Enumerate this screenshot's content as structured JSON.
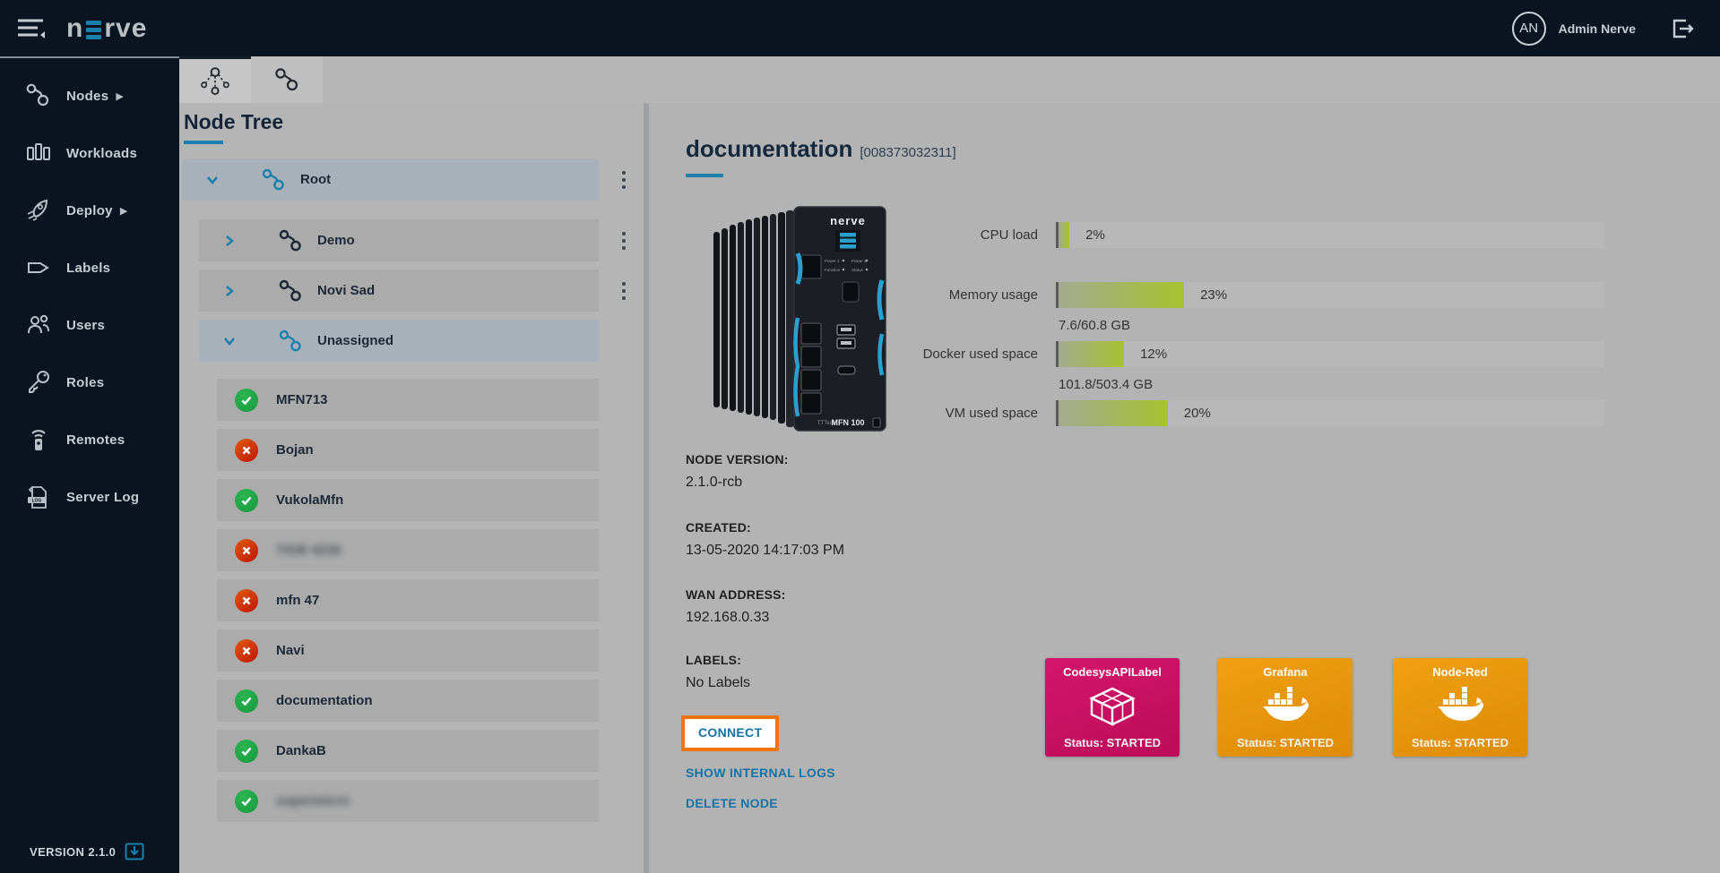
{
  "topbar": {
    "logo_text_n": "n",
    "logo_text_rve": "rve",
    "user_initials": "AN",
    "user_name": "Admin Nerve"
  },
  "sidebar": {
    "items": [
      {
        "label": "Nodes",
        "icon": "nodes-icon",
        "has_submenu": true
      },
      {
        "label": "Workloads",
        "icon": "workloads-icon",
        "has_submenu": false
      },
      {
        "label": "Deploy",
        "icon": "deploy-icon",
        "has_submenu": true
      },
      {
        "label": "Labels",
        "icon": "labels-icon",
        "has_submenu": false
      },
      {
        "label": "Users",
        "icon": "users-icon",
        "has_submenu": false
      },
      {
        "label": "Roles",
        "icon": "roles-icon",
        "has_submenu": false
      },
      {
        "label": "Remotes",
        "icon": "remotes-icon",
        "has_submenu": false
      },
      {
        "label": "Server Log",
        "icon": "server-log-icon",
        "has_submenu": false
      }
    ],
    "version_label": "VERSION 2.1.0"
  },
  "tree": {
    "heading": "Node Tree",
    "groups": [
      {
        "label": "Root",
        "expanded": true,
        "selected": true,
        "has_menu": true
      },
      {
        "label": "Demo",
        "expanded": false,
        "selected": false,
        "has_menu": true
      },
      {
        "label": "Novi Sad",
        "expanded": false,
        "selected": false,
        "has_menu": true
      },
      {
        "label": "Unassigned",
        "expanded": true,
        "selected": true,
        "has_menu": false
      }
    ],
    "nodes": [
      {
        "label": "MFN713",
        "status": "online",
        "blurred": false
      },
      {
        "label": "Bojan",
        "status": "offline",
        "blurred": false
      },
      {
        "label": "VukolaMfn",
        "status": "online",
        "blurred": false
      },
      {
        "label": "TGW 4230",
        "status": "offline",
        "blurred": true
      },
      {
        "label": "mfn 47",
        "status": "offline",
        "blurred": false
      },
      {
        "label": "Navi",
        "status": "offline",
        "blurred": false
      },
      {
        "label": "documentation",
        "status": "online",
        "blurred": false
      },
      {
        "label": "DankaB",
        "status": "online",
        "blurred": false
      },
      {
        "label": "supermicro",
        "status": "online",
        "blurred": true
      }
    ]
  },
  "details": {
    "title": "documentation",
    "serial": "[008373032311]",
    "device": {
      "brand": "nerve",
      "model": "MFN 100"
    },
    "gauges": [
      {
        "label": "CPU load",
        "pct": 2,
        "value": "2%",
        "sub": ""
      },
      {
        "label": "Memory usage",
        "pct": 23,
        "value": "23%",
        "sub": ""
      },
      {
        "label": "Docker used space",
        "pct": 12,
        "value": "12%",
        "sub": "7.6/60.8 GB"
      },
      {
        "label": "VM used space",
        "pct": 20,
        "value": "20%",
        "sub": "101.8/503.4 GB"
      }
    ],
    "fields": [
      {
        "label": "NODE VERSION:",
        "value": "2.1.0-rcb"
      },
      {
        "label": "CREATED:",
        "value": "13-05-2020 14:17:03 PM"
      },
      {
        "label": "WAN ADDRESS:",
        "value": "192.168.0.33"
      },
      {
        "label": "LABELS:",
        "value": "No Labels"
      }
    ],
    "actions": {
      "connect": "CONNECT",
      "show_logs": "SHOW INTERNAL LOGS",
      "delete": "DELETE NODE"
    },
    "workloads": [
      {
        "name": "CodesysAPILabel",
        "status": "Status: STARTED",
        "type": "codesys",
        "color_top": "#d4156d",
        "color_bottom": "#bb0b59"
      },
      {
        "name": "Grafana",
        "status": "Status: STARTED",
        "type": "docker",
        "color_top": "#f0a011",
        "color_bottom": "#dd8c04"
      },
      {
        "name": "Node-Red",
        "status": "Status: STARTED",
        "type": "docker",
        "color_top": "#f0a011",
        "color_bottom": "#dd8c04"
      }
    ]
  },
  "colors": {
    "navy": "#0a1420",
    "accent_blue": "#1b81aa",
    "link_blue": "#1572a5",
    "highlight_orange": "#f0750f",
    "gauge_green": "#a8c32f",
    "status_green": "#16993c",
    "status_red": "#bf1508"
  }
}
